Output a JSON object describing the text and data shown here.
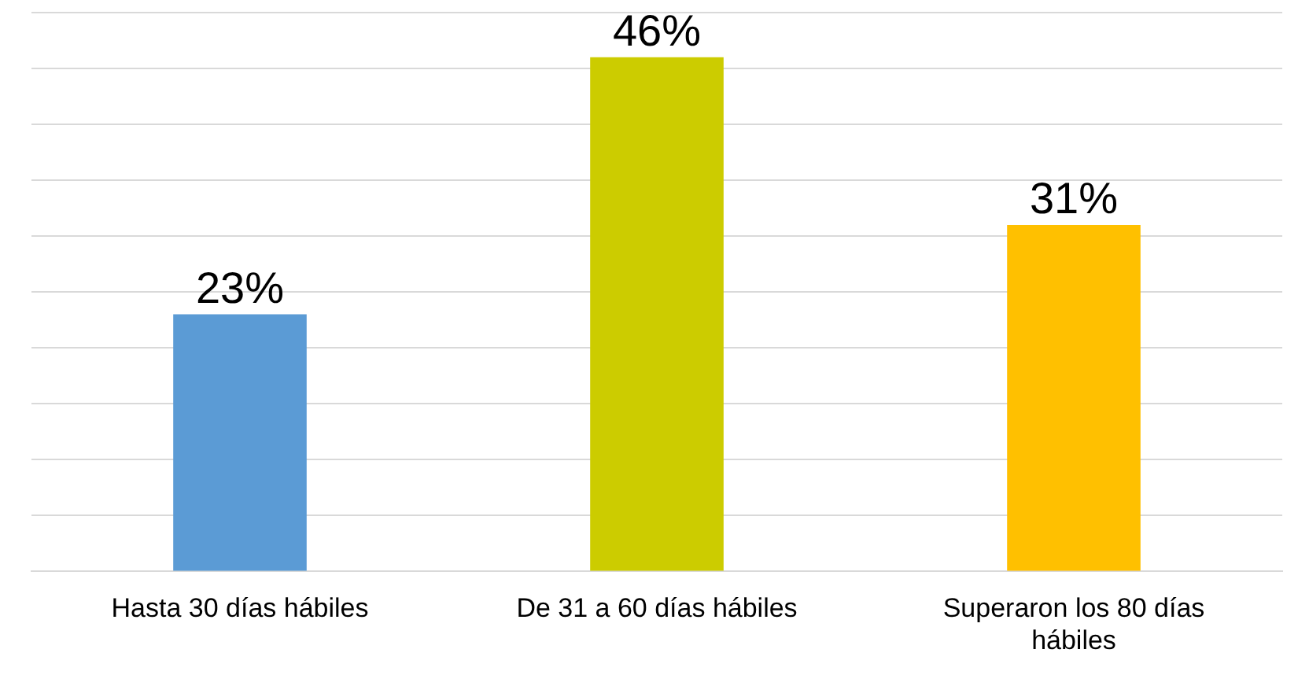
{
  "chart_data": {
    "type": "bar",
    "categories": [
      "Hasta 30 días hábiles",
      "De 31 a 60 días hábiles",
      "Superaron los 80 días hábiles"
    ],
    "values": [
      23,
      46,
      31
    ],
    "colors": [
      "#5b9bd5",
      "#cccc00",
      "#ffc000"
    ],
    "value_labels": [
      "23%",
      "46%",
      "31%"
    ],
    "ylim": [
      0,
      50
    ],
    "yticks": [
      0,
      5,
      10,
      15,
      20,
      25,
      30,
      35,
      40,
      45,
      50
    ],
    "grid": "y",
    "tick_labels": "x",
    "legend": false
  }
}
